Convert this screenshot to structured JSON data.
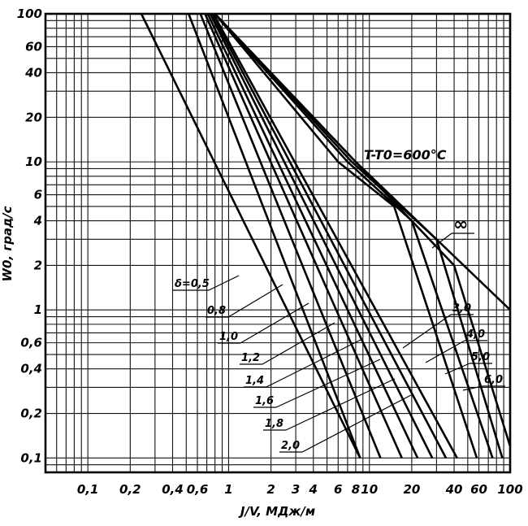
{
  "chart_data": {
    "type": "line",
    "x_scale": "log",
    "y_scale": "log",
    "xlim": [
      0.05,
      100
    ],
    "ylim": [
      0.08,
      100
    ],
    "xlabel": "J/V, МДж/м",
    "ylabel": "W0, град/с",
    "x_ticks": [
      "0,1",
      "0,2",
      "0,4",
      "0,6",
      "1",
      "2",
      "3",
      "4",
      "6",
      "8",
      "10",
      "20",
      "40",
      "60",
      "100"
    ],
    "y_ticks": [
      "0,1",
      "0,2",
      "0,4",
      "0,6",
      "1",
      "2",
      "4",
      "6",
      "10",
      "20",
      "40",
      "60",
      "100"
    ],
    "annotation": "T-T0=600°C",
    "grid": true,
    "series": [
      {
        "name": "δ=0,5",
        "x": [
          0.24,
          8.6
        ],
        "y": [
          100,
          0.1
        ]
      },
      {
        "name": "0,8",
        "x": [
          0.52,
          8.6
        ],
        "y": [
          100,
          0.1
        ]
      },
      {
        "name": "1,0",
        "x": [
          0.63,
          12
        ],
        "y": [
          100,
          0.1
        ]
      },
      {
        "name": "1,2",
        "x": [
          0.68,
          17
        ],
        "y": [
          100,
          0.1
        ]
      },
      {
        "name": "1,4",
        "x": [
          0.71,
          22
        ],
        "y": [
          100,
          0.1
        ]
      },
      {
        "name": "1,6",
        "x": [
          0.74,
          28
        ],
        "y": [
          100,
          0.1
        ]
      },
      {
        "name": "1,8",
        "x": [
          0.76,
          35
        ],
        "y": [
          100,
          0.1
        ]
      },
      {
        "name": "2,0",
        "x": [
          0.78,
          42
        ],
        "y": [
          100,
          0.1
        ]
      },
      {
        "name": "3,0",
        "x": [
          0.8,
          6,
          15,
          58
        ],
        "y": [
          100,
          10,
          5,
          0.1
        ]
      },
      {
        "name": "4,0",
        "x": [
          0.8,
          7,
          20,
          75
        ],
        "y": [
          100,
          10,
          4,
          0.1
        ]
      },
      {
        "name": "5,0",
        "x": [
          0.8,
          7.5,
          30,
          88
        ],
        "y": [
          100,
          10,
          3,
          0.1
        ]
      },
      {
        "name": "6,0",
        "x": [
          0.8,
          8,
          40,
          100
        ],
        "y": [
          100,
          10,
          2,
          0.12
        ]
      },
      {
        "name": "∞",
        "x": [
          0.8,
          8,
          100
        ],
        "y": [
          100,
          10,
          1
        ]
      }
    ]
  }
}
